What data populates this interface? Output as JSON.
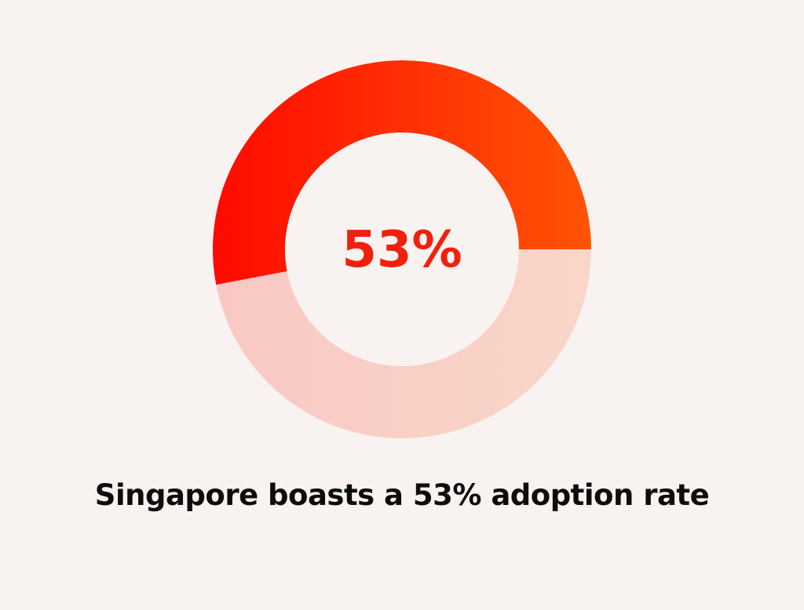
{
  "chart_data": {
    "type": "pie",
    "values": [
      53,
      47
    ],
    "center_label": "53%",
    "caption": "Singapore boasts a 53% adoption rate",
    "colors": {
      "filled_start": "#ff0a00",
      "filled_end": "#ff5406",
      "remaining_start": "#f9c8c4",
      "remaining_end": "#f9d6c8",
      "center_text": "#f0200c",
      "background": "#f8f3f1"
    }
  }
}
